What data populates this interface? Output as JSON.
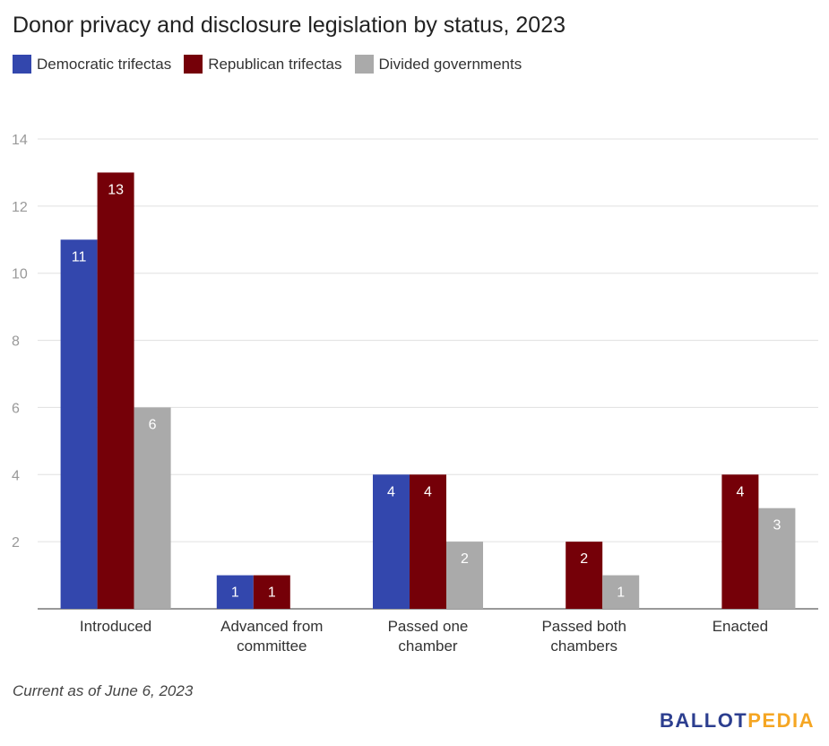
{
  "title": "Donor privacy and disclosure legislation by status, 2023",
  "note": "Current as of June 6, 2023",
  "logo": {
    "part1": "BALLOT",
    "part2": "PEDIA"
  },
  "colors": {
    "democratic": "#3347ad",
    "republican": "#750008",
    "divided": "#aaaaaa"
  },
  "chart_data": {
    "type": "bar",
    "categories": [
      "Introduced",
      "Advanced from committee",
      "Passed one chamber",
      "Passed both chambers",
      "Enacted"
    ],
    "category_lines": [
      [
        "Introduced"
      ],
      [
        "Advanced from",
        "committee"
      ],
      [
        "Passed one",
        "chamber"
      ],
      [
        "Passed both",
        "chambers"
      ],
      [
        "Enacted"
      ]
    ],
    "series": [
      {
        "name": "Democratic trifectas",
        "values": [
          11,
          1,
          4,
          0,
          0
        ]
      },
      {
        "name": "Republican trifectas",
        "values": [
          13,
          1,
          4,
          2,
          4
        ]
      },
      {
        "name": "Divided governments",
        "values": [
          6,
          0,
          2,
          1,
          3
        ]
      }
    ],
    "ylim": [
      0,
      14
    ],
    "yticks": [
      2,
      4,
      6,
      8,
      10,
      12,
      14
    ],
    "grid": true,
    "legend": "top-left",
    "title": "Donor privacy and disclosure legislation by status, 2023",
    "xlabel": "",
    "ylabel": ""
  }
}
